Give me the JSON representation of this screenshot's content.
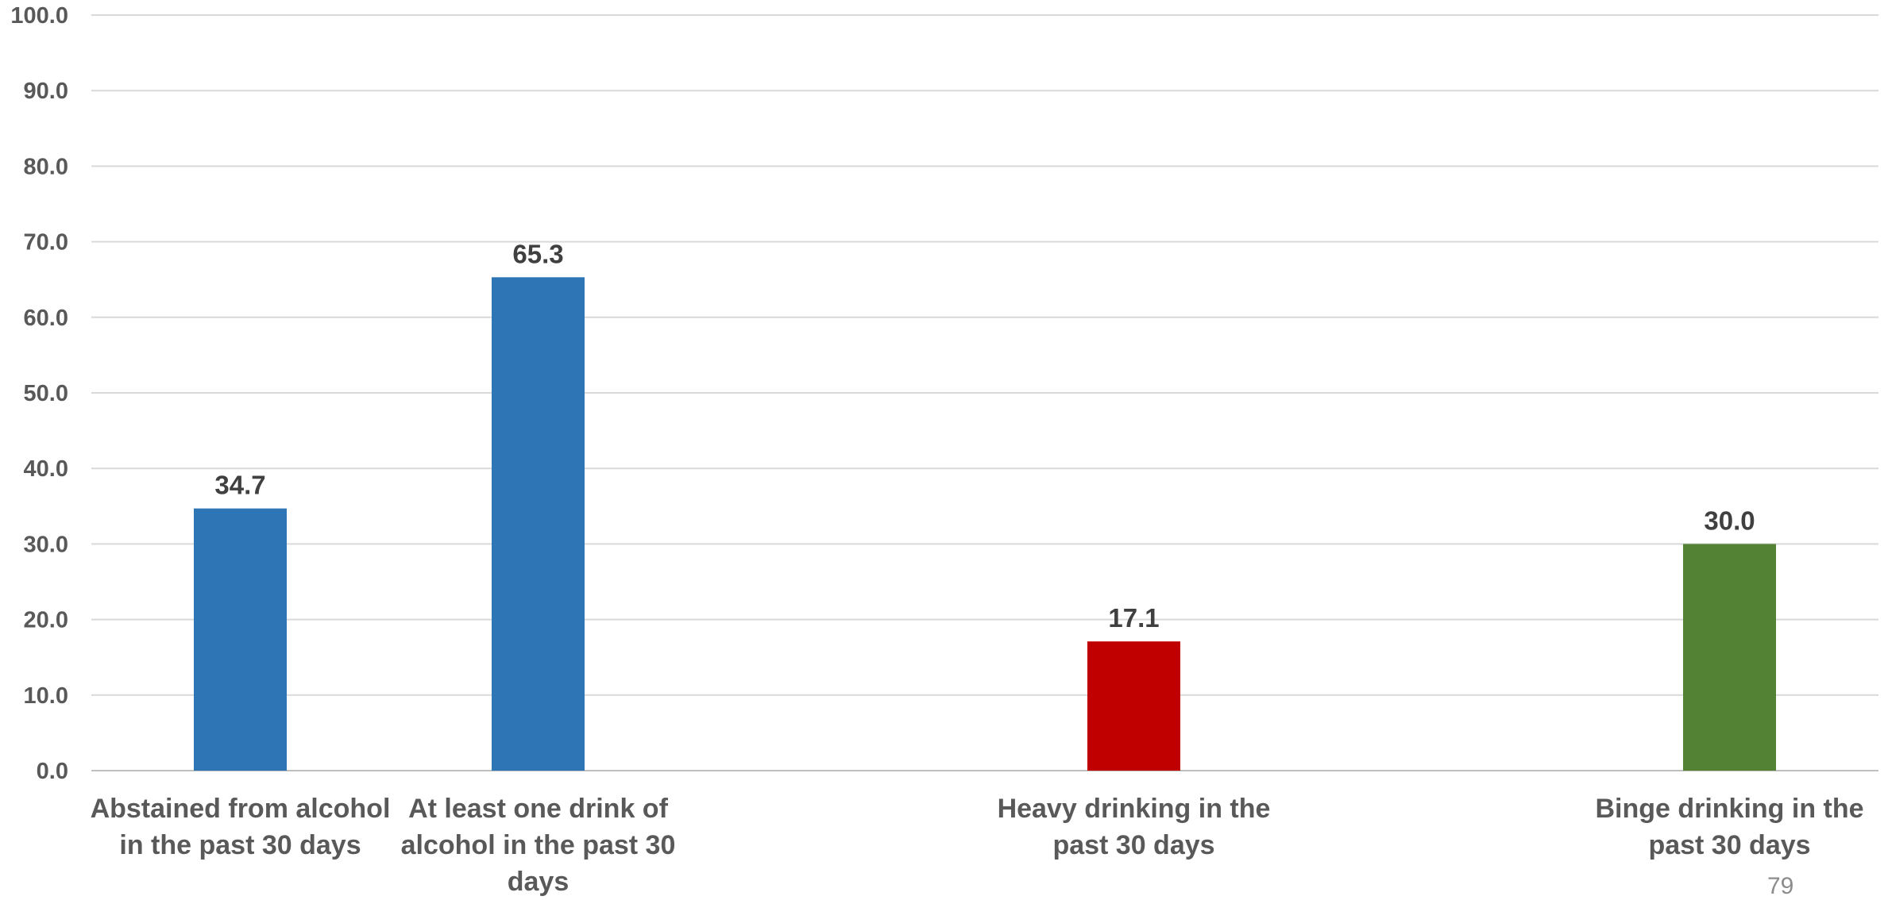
{
  "chart_data": {
    "type": "bar",
    "title": "",
    "xlabel": "",
    "ylabel": "",
    "ylim": [
      0,
      100
    ],
    "yticks": [
      "0.0",
      "10.0",
      "20.0",
      "30.0",
      "40.0",
      "50.0",
      "60.0",
      "70.0",
      "80.0",
      "90.0",
      "100.0"
    ],
    "grid": true,
    "legend": "none",
    "categories": [
      [
        "Abstained from alcohol",
        "in the past 30 days"
      ],
      [
        "At least one drink of",
        "alcohol in the past 30",
        "days"
      ],
      [
        "Heavy drinking in the",
        "past 30 days"
      ],
      [
        "Binge drinking in the",
        "past 30 days"
      ]
    ],
    "values": [
      34.7,
      65.3,
      17.1,
      30.0
    ],
    "value_labels": [
      "34.7",
      "65.3",
      "17.1",
      "30.0"
    ],
    "colors": [
      "#2E75B6",
      "#2E75B6",
      "#C00000",
      "#548235"
    ]
  },
  "page_number": "79"
}
